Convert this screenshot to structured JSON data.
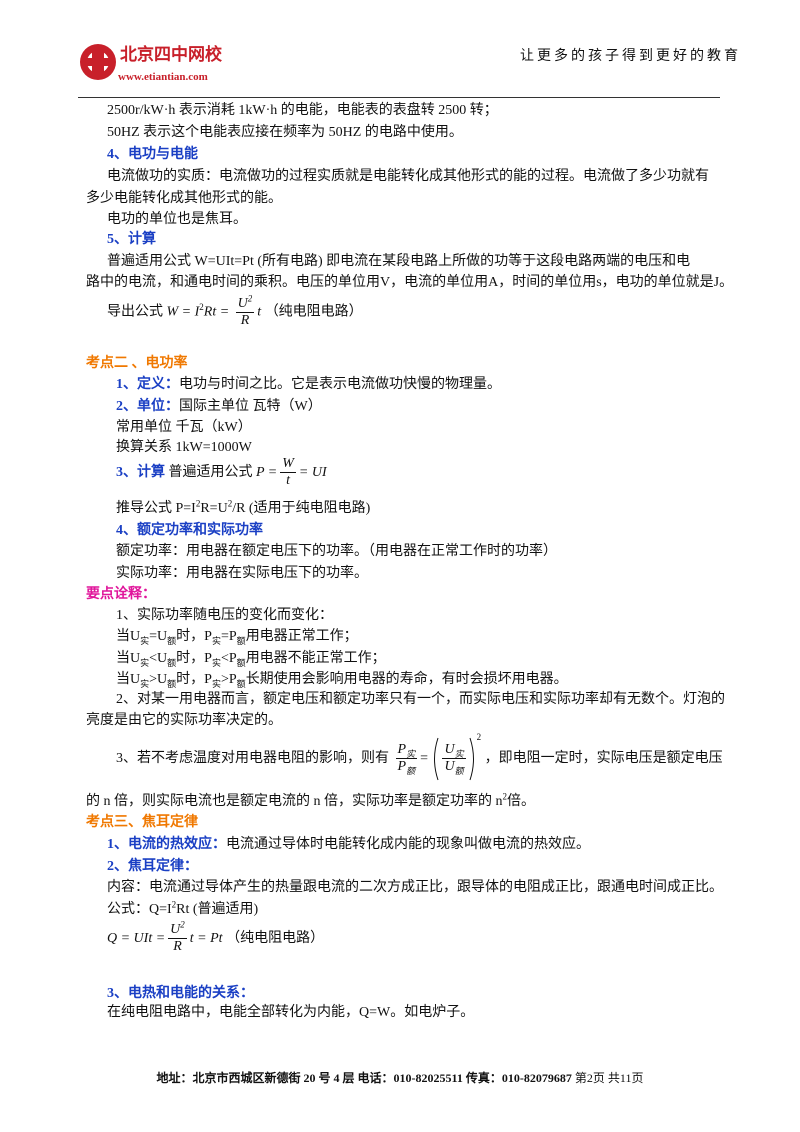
{
  "header": {
    "logo_name": "北京四中网校",
    "logo_url": "www.etiantian.com",
    "slogan": "让更多的孩子得到更好的教育"
  },
  "meter": [
    "2500r/kW·h 表示消耗 1kW·h 的电能，电能表的表盘转 2500 转；",
    "50HZ 表示这个电能表应接在频率为 50HZ 的电路中使用。"
  ],
  "work": {
    "heading": "4、电功与电能",
    "lines": [
      "电流做功的实质：电流做功的过程实质就是电能转化成其他形式的能的过程。电流做了多少功就有",
      "多少电能转化成其他形式的能。",
      "电功的单位也是焦耳。"
    ]
  },
  "calc": {
    "heading": "5、计算",
    "lines": [
      "普遍适用公式 W=UIt=Pt (所有电路) 即电流在某段电路上所做的功等于这段电路两端的电压和电",
      "路中的电流，和通电时间的乘积。电压的单位用V，电流的单位用A，时间的单位用s，电功的单位就是J。"
    ],
    "derived_label": "导出公式",
    "formula": {
      "lhs": "W = I",
      "sup": "2",
      "mid": "Rt =",
      "num": "U",
      "num_sup": "2",
      "den": "R",
      "rhs": "t"
    },
    "note": "（纯电阻电路）"
  },
  "power": {
    "heading": "考点二 、电功率",
    "def": {
      "label": "1、定义：",
      "text": "电功与时间之比。它是表示电流做功快慢的物理量。"
    },
    "unit": {
      "label": "2、单位：",
      "text": "国际主单位 瓦特（W）",
      "common": "常用单位 千瓦（kW）",
      "convert": "换算关系 1kW=1000W"
    },
    "calc": {
      "label": "3、计算",
      "text": "普遍适用公式",
      "formula": {
        "lhs": "P =",
        "num": "W",
        "den": "t",
        "rhs": "= UI"
      },
      "derived": {
        "a": "推导公式 P=I",
        "a_sup": "2",
        "b": "R=U",
        "b_sup": "2",
        "c": "/R (适用于纯电阻电路)"
      }
    },
    "rated": {
      "heading": "4、额定功率和实际功率",
      "lines": [
        "额定功率：用电器在额定电压下的功率。（用电器在正常工作时的功率）",
        "实际功率：用电器在实际电压下的功率。"
      ]
    }
  },
  "notes": {
    "heading": "要点诠释：",
    "item1": "1、实际功率随电压的变化而变化：",
    "cases": [
      [
        "当U",
        "实",
        "=U",
        "额",
        "时，P",
        "实",
        "=P",
        "额",
        "用电器正常工作；"
      ],
      [
        "当U",
        "实",
        "<U",
        "额",
        "时，P",
        "实",
        "<P",
        "额",
        "用电器不能正常工作；"
      ],
      [
        "当U",
        "实",
        ">U",
        "额",
        "时，P",
        "实",
        ">P",
        "额",
        "长期使用会影响用电器的寿命，有时会损坏用电器。"
      ]
    ],
    "item2": [
      "2、对某一用电器而言，额定电压和额定功率只有一个，而实际电压和实际功率却有无数个。灯泡的",
      "亮度是由它的实际功率决定的。"
    ],
    "item3": {
      "before": "3、若不考虑温度对用电器电阻的影响，则有",
      "formula": {
        "p": "P",
        "p_sub1": "实",
        "p2": "P",
        "p_sub2": "额",
        "eq": "=",
        "u": "U",
        "u_sub1": "实",
        "u2": "U",
        "u_sub2": "额",
        "sup": "2"
      },
      "after": "，即电阻一定时，实际电压是额定电压",
      "line2a": "的 n 倍，则实际电流也是额定电流的 n 倍，实际功率是额定功率的 n",
      "line2sup": "2",
      "line2b": "倍。"
    }
  },
  "joule": {
    "heading": "考点三、焦耳定律",
    "effect": {
      "label": "1、电流的热效应：",
      "text": "电流通过导体时电能转化成内能的现象叫做电流的热效应。"
    },
    "law": {
      "label": "2、焦耳定律：",
      "content": "内容：电流通过导体产生的热量跟电流的二次方成正比，跟导体的电阻成正比，跟通电时间成正比。",
      "formula_a": "公式：Q=I",
      "formula_sup": "2",
      "formula_b": "Rt (普遍适用)",
      "formula2": {
        "lhs": "Q = UIt =",
        "num": "U",
        "num_sup": "2",
        "den": "R",
        "rhs": "t = Pt"
      },
      "note": "（纯电阻电路）"
    },
    "relation": {
      "label": "3、电热和电能的关系：",
      "text": "在纯电阻电路中，电能全部转化为内能，Q=W。如电炉子。"
    }
  },
  "footer": {
    "address": "地址：北京市西城区新德街 20 号 4 层  电话：010-82025511  传真：010-82079687",
    "page": "第2页  共11页"
  }
}
